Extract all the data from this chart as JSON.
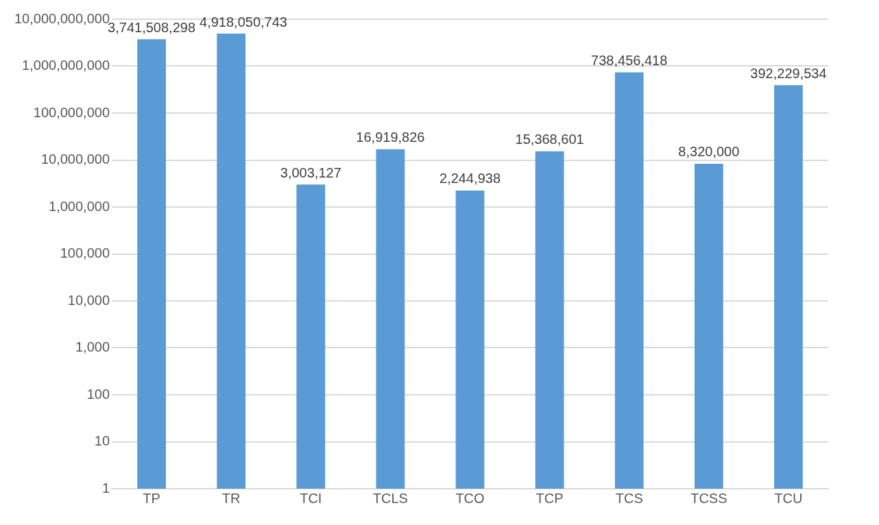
{
  "chart_data": {
    "type": "bar",
    "categories": [
      "TP",
      "TR",
      "TCI",
      "TCLS",
      "TCO",
      "TCP",
      "TCS",
      "TCSS",
      "TCU"
    ],
    "values": [
      3741508298,
      4918050743,
      3003127,
      16919826,
      2244938,
      15368601,
      738456418,
      8320000,
      392229534
    ],
    "value_labels": [
      "3,741,508,298",
      "4,918,050,743",
      "3,003,127",
      "16,919,826",
      "2,244,938",
      "15,368,601",
      "738,456,418",
      "8,320,000",
      "392,229,534"
    ],
    "color": "#5b9bd5",
    "log": true,
    "ylim": [
      1,
      10000000000
    ],
    "yticks": [
      {
        "value": 1,
        "label": "1"
      },
      {
        "value": 10,
        "label": "10"
      },
      {
        "value": 100,
        "label": "100"
      },
      {
        "value": 1000,
        "label": "1,000"
      },
      {
        "value": 10000,
        "label": "10,000"
      },
      {
        "value": 100000,
        "label": "100,000"
      },
      {
        "value": 1000000,
        "label": "1,000,000"
      },
      {
        "value": 10000000,
        "label": "10,000,000"
      },
      {
        "value": 100000000,
        "label": "100,000,000"
      },
      {
        "value": 1000000000,
        "label": "1,000,000,000"
      },
      {
        "value": 10000000000,
        "label": "10,000,000,000"
      }
    ],
    "grid": "y"
  }
}
